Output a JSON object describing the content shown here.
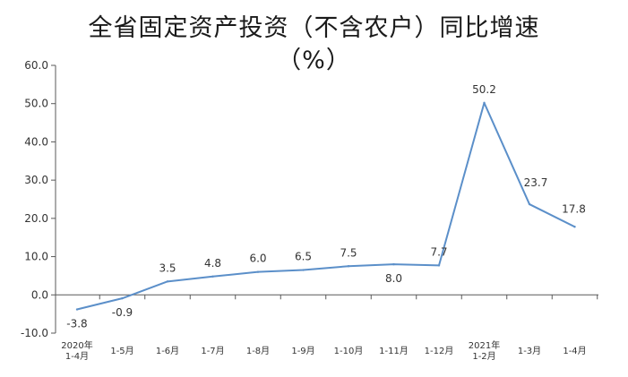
{
  "chart_data": {
    "type": "line",
    "title": "全省固定资产投资（不含农户）同比增速",
    "subtitle": "（%）",
    "xlabel": "",
    "ylabel": "",
    "ylim": [
      -10,
      60
    ],
    "yticks": [
      "60.0",
      "50.0",
      "40.0",
      "30.0",
      "20.0",
      "10.0",
      "0.0",
      "-10.0"
    ],
    "categories": [
      [
        "2020年",
        "1-4月"
      ],
      [
        "1-5月"
      ],
      [
        "1-6月"
      ],
      [
        "1-7月"
      ],
      [
        "1-8月"
      ],
      [
        "1-9月"
      ],
      [
        "1-10月"
      ],
      [
        "1-11月"
      ],
      [
        "1-12月"
      ],
      [
        "2021年",
        "1-2月"
      ],
      [
        "1-3月"
      ],
      [
        "1-4月"
      ]
    ],
    "series": [
      {
        "values": [
          -3.8,
          -0.9,
          3.5,
          4.8,
          6.0,
          6.5,
          7.5,
          8.0,
          7.7,
          50.2,
          23.7,
          17.8
        ],
        "labels": [
          "-3.8",
          "-0.9",
          "3.5",
          "4.8",
          "6.0",
          "6.5",
          "7.5",
          "8.0",
          "7.7",
          "50.2",
          "23.7",
          "17.8"
        ],
        "color": "#5b8fc9"
      }
    ],
    "grid": false,
    "legend": "none"
  }
}
